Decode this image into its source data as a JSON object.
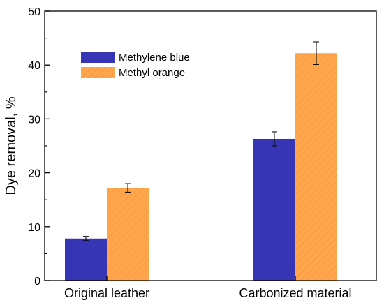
{
  "chart_data": {
    "type": "bar",
    "ylabel": "Dye removal, %",
    "xlabel": "",
    "categories": [
      "Original leather",
      "Carbonized material"
    ],
    "ylim": [
      0,
      50
    ],
    "yticks": [
      0,
      10,
      20,
      30,
      40,
      50
    ],
    "series": [
      {
        "name": "Methylene blue",
        "values": [
          7.8,
          26.3
        ],
        "errors": [
          0.4,
          1.3
        ],
        "color": "#3535b5",
        "hatch": false
      },
      {
        "name": "Methyl orange",
        "values": [
          17.2,
          42.2
        ],
        "errors": [
          0.8,
          2.1
        ],
        "color": "#ffa64d",
        "hatch": true
      }
    ],
    "legend": "top-left",
    "grid": false
  }
}
